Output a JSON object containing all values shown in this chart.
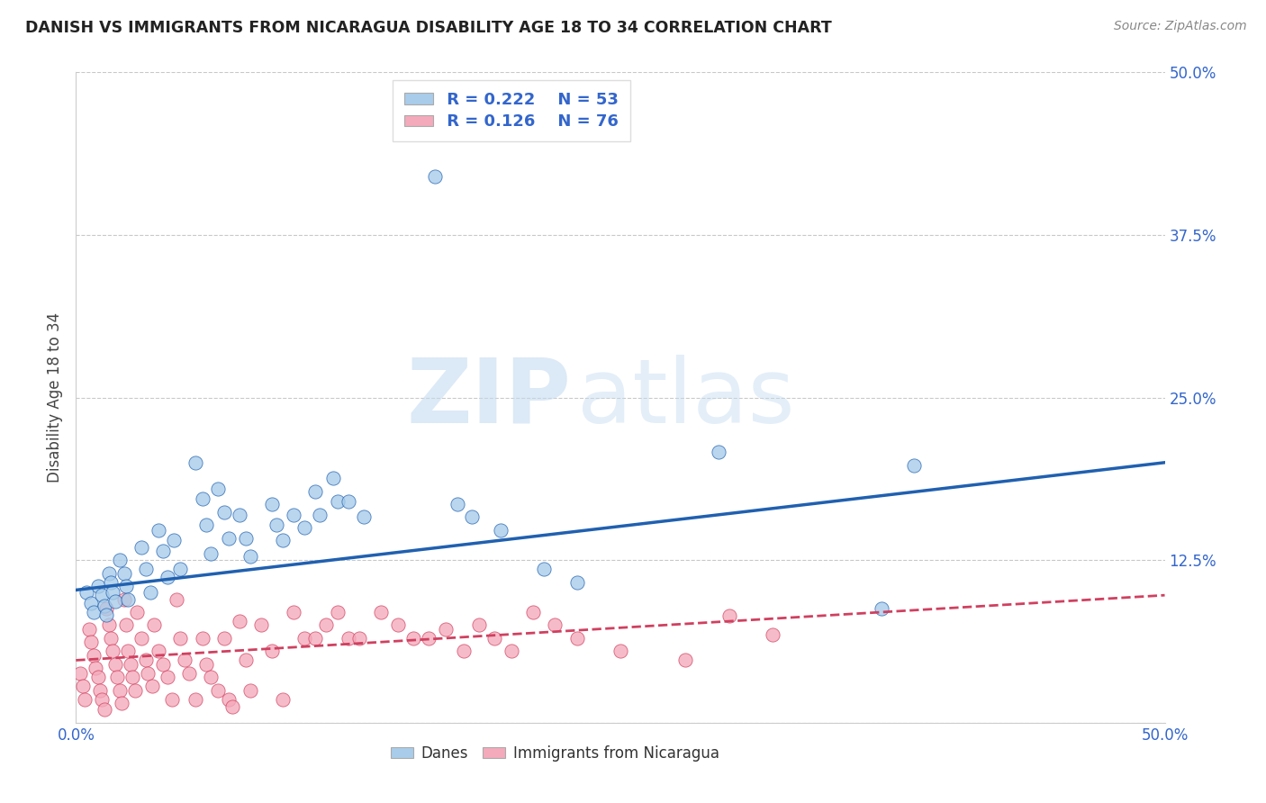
{
  "title": "DANISH VS IMMIGRANTS FROM NICARAGUA DISABILITY AGE 18 TO 34 CORRELATION CHART",
  "source": "Source: ZipAtlas.com",
  "ylabel": "Disability Age 18 to 34",
  "xlim": [
    0,
    0.5
  ],
  "ylim": [
    0,
    0.5
  ],
  "xticks": [
    0.0,
    0.125,
    0.25,
    0.375,
    0.5
  ],
  "yticks": [
    0.0,
    0.125,
    0.25,
    0.375,
    0.5
  ],
  "xticklabels_bottom": [
    "0.0%",
    "",
    "",
    "",
    "50.0%"
  ],
  "yticklabels_right": [
    "",
    "12.5%",
    "25.0%",
    "37.5%",
    "50.0%"
  ],
  "watermark_zip": "ZIP",
  "watermark_atlas": "atlas",
  "blue_color": "#A8CCEA",
  "pink_color": "#F4AABB",
  "blue_line_color": "#2060B0",
  "pink_line_color": "#D04060",
  "legend_R1": "R = 0.222",
  "legend_N1": "N = 53",
  "legend_R2": "R = 0.126",
  "legend_N2": "N = 76",
  "label1": "Danes",
  "label2": "Immigrants from Nicaragua",
  "blue_dots": [
    [
      0.005,
      0.1
    ],
    [
      0.007,
      0.092
    ],
    [
      0.008,
      0.085
    ],
    [
      0.01,
      0.105
    ],
    [
      0.012,
      0.098
    ],
    [
      0.013,
      0.09
    ],
    [
      0.014,
      0.083
    ],
    [
      0.015,
      0.115
    ],
    [
      0.016,
      0.108
    ],
    [
      0.017,
      0.1
    ],
    [
      0.018,
      0.093
    ],
    [
      0.02,
      0.125
    ],
    [
      0.022,
      0.115
    ],
    [
      0.023,
      0.105
    ],
    [
      0.024,
      0.095
    ],
    [
      0.03,
      0.135
    ],
    [
      0.032,
      0.118
    ],
    [
      0.034,
      0.1
    ],
    [
      0.038,
      0.148
    ],
    [
      0.04,
      0.132
    ],
    [
      0.042,
      0.112
    ],
    [
      0.045,
      0.14
    ],
    [
      0.048,
      0.118
    ],
    [
      0.055,
      0.2
    ],
    [
      0.058,
      0.172
    ],
    [
      0.06,
      0.152
    ],
    [
      0.062,
      0.13
    ],
    [
      0.065,
      0.18
    ],
    [
      0.068,
      0.162
    ],
    [
      0.07,
      0.142
    ],
    [
      0.075,
      0.16
    ],
    [
      0.078,
      0.142
    ],
    [
      0.08,
      0.128
    ],
    [
      0.09,
      0.168
    ],
    [
      0.092,
      0.152
    ],
    [
      0.095,
      0.14
    ],
    [
      0.1,
      0.16
    ],
    [
      0.105,
      0.15
    ],
    [
      0.11,
      0.178
    ],
    [
      0.112,
      0.16
    ],
    [
      0.118,
      0.188
    ],
    [
      0.12,
      0.17
    ],
    [
      0.125,
      0.17
    ],
    [
      0.132,
      0.158
    ],
    [
      0.165,
      0.42
    ],
    [
      0.175,
      0.168
    ],
    [
      0.182,
      0.158
    ],
    [
      0.195,
      0.148
    ],
    [
      0.215,
      0.118
    ],
    [
      0.23,
      0.108
    ],
    [
      0.295,
      0.208
    ],
    [
      0.37,
      0.088
    ],
    [
      0.385,
      0.198
    ]
  ],
  "pink_dots": [
    [
      0.002,
      0.038
    ],
    [
      0.003,
      0.028
    ],
    [
      0.004,
      0.018
    ],
    [
      0.006,
      0.072
    ],
    [
      0.007,
      0.062
    ],
    [
      0.008,
      0.052
    ],
    [
      0.009,
      0.042
    ],
    [
      0.01,
      0.035
    ],
    [
      0.011,
      0.025
    ],
    [
      0.012,
      0.018
    ],
    [
      0.013,
      0.01
    ],
    [
      0.014,
      0.088
    ],
    [
      0.015,
      0.075
    ],
    [
      0.016,
      0.065
    ],
    [
      0.017,
      0.055
    ],
    [
      0.018,
      0.045
    ],
    [
      0.019,
      0.035
    ],
    [
      0.02,
      0.025
    ],
    [
      0.021,
      0.015
    ],
    [
      0.022,
      0.095
    ],
    [
      0.023,
      0.075
    ],
    [
      0.024,
      0.055
    ],
    [
      0.025,
      0.045
    ],
    [
      0.026,
      0.035
    ],
    [
      0.027,
      0.025
    ],
    [
      0.028,
      0.085
    ],
    [
      0.03,
      0.065
    ],
    [
      0.032,
      0.048
    ],
    [
      0.033,
      0.038
    ],
    [
      0.035,
      0.028
    ],
    [
      0.036,
      0.075
    ],
    [
      0.038,
      0.055
    ],
    [
      0.04,
      0.045
    ],
    [
      0.042,
      0.035
    ],
    [
      0.044,
      0.018
    ],
    [
      0.046,
      0.095
    ],
    [
      0.048,
      0.065
    ],
    [
      0.05,
      0.048
    ],
    [
      0.052,
      0.038
    ],
    [
      0.055,
      0.018
    ],
    [
      0.058,
      0.065
    ],
    [
      0.06,
      0.045
    ],
    [
      0.062,
      0.035
    ],
    [
      0.065,
      0.025
    ],
    [
      0.068,
      0.065
    ],
    [
      0.07,
      0.018
    ],
    [
      0.072,
      0.012
    ],
    [
      0.075,
      0.078
    ],
    [
      0.078,
      0.048
    ],
    [
      0.08,
      0.025
    ],
    [
      0.085,
      0.075
    ],
    [
      0.09,
      0.055
    ],
    [
      0.095,
      0.018
    ],
    [
      0.1,
      0.085
    ],
    [
      0.105,
      0.065
    ],
    [
      0.11,
      0.065
    ],
    [
      0.115,
      0.075
    ],
    [
      0.12,
      0.085
    ],
    [
      0.125,
      0.065
    ],
    [
      0.13,
      0.065
    ],
    [
      0.14,
      0.085
    ],
    [
      0.148,
      0.075
    ],
    [
      0.155,
      0.065
    ],
    [
      0.162,
      0.065
    ],
    [
      0.17,
      0.072
    ],
    [
      0.178,
      0.055
    ],
    [
      0.185,
      0.075
    ],
    [
      0.192,
      0.065
    ],
    [
      0.2,
      0.055
    ],
    [
      0.21,
      0.085
    ],
    [
      0.22,
      0.075
    ],
    [
      0.23,
      0.065
    ],
    [
      0.25,
      0.055
    ],
    [
      0.28,
      0.048
    ],
    [
      0.3,
      0.082
    ],
    [
      0.32,
      0.068
    ]
  ],
  "blue_trend": {
    "x_start": 0.0,
    "y_start": 0.102,
    "x_end": 0.5,
    "y_end": 0.2
  },
  "pink_trend": {
    "x_start": 0.0,
    "y_start": 0.048,
    "x_end": 0.5,
    "y_end": 0.098
  },
  "background_color": "#ffffff",
  "grid_color": "#bbbbbb",
  "tick_color": "#3366CC"
}
